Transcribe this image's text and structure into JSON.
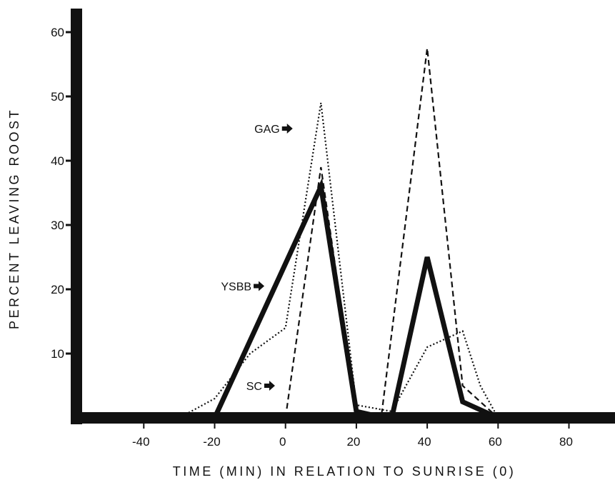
{
  "chart_data": {
    "type": "line",
    "title": "",
    "xlabel": "TIME (MIN) IN RELATION TO SUNRISE (0)",
    "ylabel": "PERCENT LEAVING ROOST",
    "xlim": [
      -58,
      93
    ],
    "ylim": [
      0,
      63
    ],
    "x_ticks": [
      -40,
      -20,
      0,
      20,
      40,
      60,
      80
    ],
    "x_tick_labels": [
      "-40",
      "-20",
      "0",
      "20",
      "40",
      "60",
      "80"
    ],
    "y_ticks": [
      10,
      20,
      30,
      40,
      50,
      60
    ],
    "y_tick_labels": [
      "10",
      "20",
      "30",
      "40",
      "50",
      "60"
    ],
    "grid": false,
    "legend": "none",
    "colors": {
      "ink": "#111111",
      "background": "#ffffff"
    },
    "series": [
      {
        "name": "YSBB",
        "style": "solid",
        "points": [
          [
            -20,
            0
          ],
          [
            10,
            36
          ],
          [
            20,
            1
          ],
          [
            28,
            0
          ],
          [
            30,
            0
          ],
          [
            40,
            25
          ],
          [
            50,
            2.5
          ],
          [
            60,
            0
          ]
        ]
      },
      {
        "name": "GAG",
        "style": "dotted",
        "points": [
          [
            -30,
            0
          ],
          [
            -20,
            3
          ],
          [
            -10,
            10
          ],
          [
            0,
            14
          ],
          [
            10,
            49
          ],
          [
            20,
            2
          ],
          [
            30,
            1
          ],
          [
            40,
            11
          ],
          [
            50,
            13.5
          ],
          [
            55,
            5
          ],
          [
            60,
            0
          ]
        ]
      },
      {
        "name": "SC",
        "style": "dashed",
        "points": [
          [
            0,
            0
          ],
          [
            10,
            39
          ],
          [
            20,
            1
          ],
          [
            27,
            0
          ],
          [
            40,
            57.5
          ],
          [
            50,
            5
          ],
          [
            60,
            0
          ]
        ]
      }
    ],
    "annotations": [
      {
        "label": "GAG",
        "x": -1,
        "y": 45
      },
      {
        "label": "YSBB",
        "x": -9,
        "y": 20.5
      },
      {
        "label": "SC",
        "x": -6,
        "y": 5
      }
    ]
  }
}
